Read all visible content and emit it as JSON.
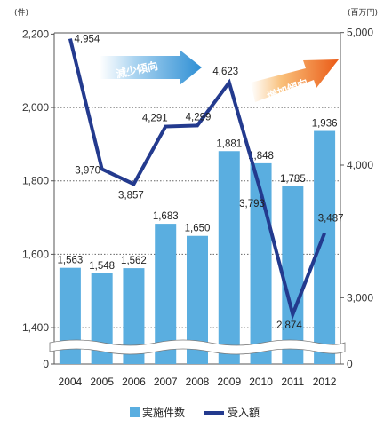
{
  "chart_data": {
    "type": "bar",
    "left_axis_unit": "(件)",
    "right_axis_unit": "(百万円)",
    "categories": [
      "2004",
      "2005",
      "2006",
      "2007",
      "2008",
      "2009",
      "2010",
      "2011",
      "2012"
    ],
    "left_axis": {
      "ticks": [
        "0",
        "1,400",
        "1,600",
        "1,800",
        "2,000",
        "2,200"
      ],
      "ylim": [
        1300,
        2200
      ],
      "broken": true
    },
    "right_axis": {
      "ticks": [
        "0",
        "3,000",
        "4,000",
        "5,000"
      ],
      "ylim": [
        2500,
        5000
      ],
      "broken": true
    },
    "series": [
      {
        "name": "実施件数",
        "kind": "bar",
        "axis": "left",
        "color": "#5aaee0",
        "values": [
          1563,
          1548,
          1562,
          1683,
          1650,
          1881,
          1848,
          1785,
          1936
        ],
        "labels": [
          "1,563",
          "1,548",
          "1,562",
          "1,683",
          "1,650",
          "1,881",
          "1,848",
          "1,785",
          "1,936"
        ]
      },
      {
        "name": "受入額",
        "kind": "line",
        "axis": "right",
        "color": "#233a8e",
        "values": [
          4954,
          3970,
          3857,
          4291,
          4299,
          4623,
          3793,
          2874,
          3487
        ],
        "labels": [
          "4,954",
          "3,970",
          "3,857",
          "4,291",
          "4,299",
          "4,623",
          "3,793",
          "2,874",
          "3,487"
        ]
      }
    ],
    "annotations": [
      {
        "text": "減少傾向",
        "style": "blue-arrow"
      },
      {
        "text": "増加傾向",
        "style": "orange-arrow"
      }
    ],
    "legend": {
      "position": "bottom"
    },
    "grid": "dotted-horizontal"
  }
}
